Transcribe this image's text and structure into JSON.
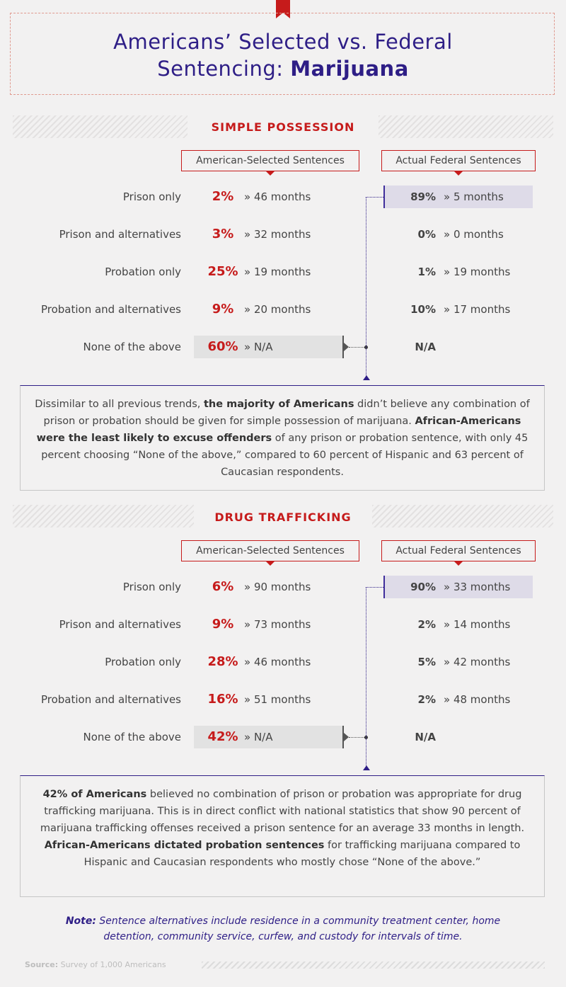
{
  "header": {
    "title_line1": "Americans’ Selected vs. Federal",
    "title_line2_prefix": "Sentencing: ",
    "title_line2_bold": "Marijuana"
  },
  "colors": {
    "accent_red": "#c61b1b",
    "accent_purple": "#2e1e86",
    "highlight_gray": "#e2e2e2",
    "highlight_purple": "#dedbe8"
  },
  "column_headers": {
    "american": "American-Selected Sentences",
    "federal": "Actual Federal Sentences"
  },
  "chart_data": [
    {
      "type": "table",
      "title": "SIMPLE POSSESSION",
      "categories": [
        "Prison only",
        "Prison and alternatives",
        "Probation only",
        "Probation and alternatives",
        "None of the above"
      ],
      "american": {
        "pct_labels": [
          "2%",
          "3%",
          "25%",
          "9%",
          "60%"
        ],
        "month_labels": [
          "» 46 months",
          "» 32 months",
          "» 19 months",
          "» 20 months",
          "» N/A"
        ],
        "percent": [
          2,
          3,
          25,
          9,
          60
        ],
        "months": [
          46,
          32,
          19,
          20,
          null
        ]
      },
      "federal": {
        "pct_labels": [
          "89%",
          "0%",
          "1%",
          "10%",
          "N/A"
        ],
        "month_labels": [
          "» 5 months",
          "» 0 months",
          "» 19 months",
          "» 17 months",
          ""
        ],
        "percent": [
          89,
          0,
          1,
          10,
          null
        ],
        "months": [
          5,
          0,
          19,
          17,
          null
        ]
      },
      "highlight_american_row": "None of the above",
      "highlight_federal_row": "Prison only"
    },
    {
      "type": "table",
      "title": "DRUG TRAFFICKING",
      "categories": [
        "Prison only",
        "Prison and alternatives",
        "Probation only",
        "Probation and alternatives",
        "None of the above"
      ],
      "american": {
        "pct_labels": [
          "6%",
          "9%",
          "28%",
          "16%",
          "42%"
        ],
        "month_labels": [
          "» 90 months",
          "» 73 months",
          "» 46 months",
          "» 51 months",
          "» N/A"
        ],
        "percent": [
          6,
          9,
          28,
          16,
          42
        ],
        "months": [
          90,
          73,
          46,
          51,
          null
        ]
      },
      "federal": {
        "pct_labels": [
          "90%",
          "2%",
          "5%",
          "2%",
          "N/A"
        ],
        "month_labels": [
          "» 33 months",
          "» 14 months",
          "» 42 months",
          "» 48 months",
          ""
        ],
        "percent": [
          90,
          2,
          5,
          2,
          null
        ],
        "months": [
          33,
          14,
          42,
          48,
          null
        ]
      },
      "highlight_american_row": "None of the above",
      "highlight_federal_row": "Prison only"
    }
  ],
  "text1": {
    "p1": "Dissimilar to all previous trends, ",
    "b1": "the majority of Americans",
    "p2": " didn’t believe any combination of prison or probation should be given for simple possession of marijuana. ",
    "b2": "African-Americans were the least likely to excuse offenders",
    "p3": " of any prison or probation sentence, with only 45 percent choosing “None of the above,” compared to 60 percent of Hispanic and 63 percent of Caucasian respondents."
  },
  "text2": {
    "b1": "42% of Americans",
    "p1": " believed no combination of prison or probation was appropriate for drug trafficking marijuana. This is in direct conflict with national statistics that show 90 percent of marijuana trafficking offenses received a prison sentence for an average 33 months in length. ",
    "b2": "African-Americans dictated probation sentences",
    "p2": " for trafficking marijuana compared to Hispanic and Caucasian respondents who mostly chose “None of the above.”"
  },
  "note": {
    "label": "Note:",
    "text": " Sentence alternatives include residence in a community treatment center, home detention, community service, curfew, and custody for intervals of time."
  },
  "source": {
    "label": "Source:",
    "text": " Survey of 1,000 Americans"
  }
}
